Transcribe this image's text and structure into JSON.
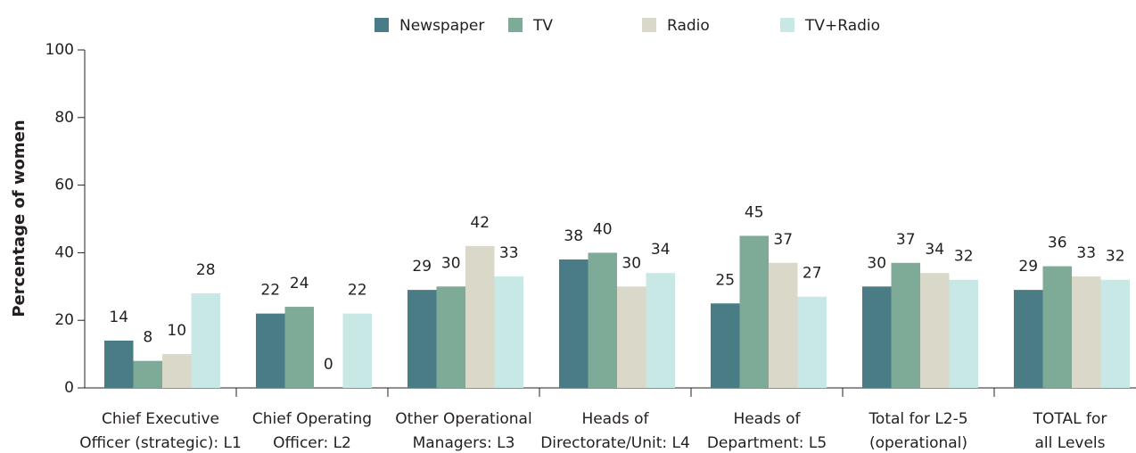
{
  "chart_data": {
    "type": "bar",
    "y_label": "Percentage of women",
    "categories": [
      "Chief Executive\nOfficer (strategic): L1",
      "Chief Operating\nOfficer: L2",
      "Other Operational\nManagers: L3",
      "Heads of\nDirectorate/Unit: L4",
      "Heads of\nDepartment: L5",
      "Total for L2-5\n(operational)",
      "TOTAL for\nall Levels"
    ],
    "series": [
      {
        "name": "Newspaper",
        "color": "#4a7c85",
        "values": [
          14,
          22,
          29,
          38,
          25,
          30,
          29
        ]
      },
      {
        "name": "TV",
        "color": "#7dab98",
        "values": [
          8,
          24,
          30,
          40,
          45,
          37,
          36
        ]
      },
      {
        "name": "Radio",
        "color": "#d9d8c9",
        "values": [
          10,
          0,
          42,
          30,
          37,
          34,
          33
        ]
      },
      {
        "name": "TV+Radio",
        "color": "#c8e8e6",
        "values": [
          28,
          22,
          33,
          34,
          27,
          32,
          32
        ]
      }
    ],
    "ylim": [
      0,
      100
    ],
    "yticks": [
      0,
      20,
      40,
      60,
      80,
      100
    ],
    "grid": false,
    "legend": "top"
  }
}
